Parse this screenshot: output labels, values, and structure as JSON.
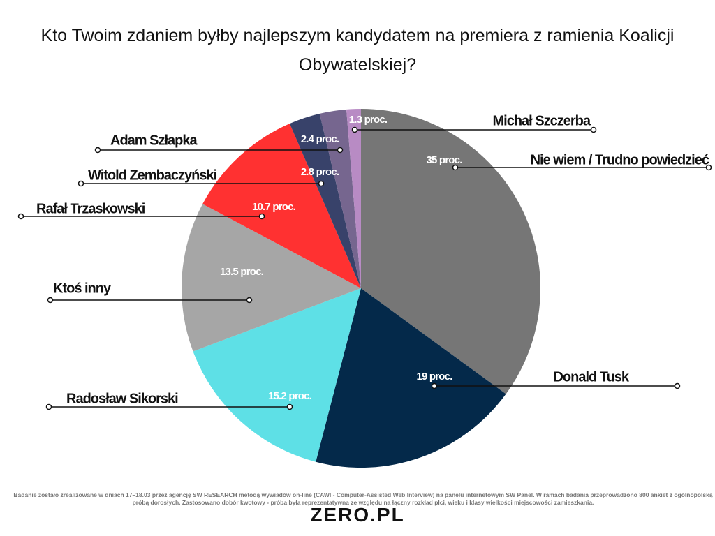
{
  "chart_data": {
    "type": "pie",
    "title": "Kto Twoim zdaniem byłby najlepszym kandydatem na premiera z ramienia Koalicji Obywatelskiej?",
    "categories": [
      "Nie wiem / Trudno powiedzieć",
      "Donald Tusk",
      "Radosław Sikorski",
      "Ktoś inny",
      "Rafał Trzaskowski",
      "Witold Zembaczyński",
      "Adam Szłapka",
      "Michał Szczerba"
    ],
    "values": [
      35,
      19,
      15.2,
      13.5,
      10.7,
      2.8,
      2.4,
      1.3
    ],
    "value_labels": [
      "35 proc.",
      "19 proc.",
      "15.2 proc.",
      "13.5 proc.",
      "10.7 proc.",
      "2.8 proc.",
      "2.4 proc.",
      "1.3 proc."
    ],
    "colors": [
      "#767676",
      "#04294a",
      "#5ee0e6",
      "#a6a6a6",
      "#ff3131",
      "#38426a",
      "#76668f",
      "#b88bc4"
    ],
    "footnote": "Badanie zostało zrealizowane w dniach 17–18.03 przez agencję SW RESEARCH metodą wywiadów on-line (CAWI - Computer-Assisted Web Interview) na panelu internetowym SW Panel. W ramach badania przeprowadzono 800 ankiet z ogólnopolską próbą dorosłych. Zastosowano dobór kwotowy - próba była reprezentatywna ze względu na łączny rozkład płci, wieku i klasy wielkości miejscowości zamieszkania.",
    "source": "ZERO.PL"
  }
}
